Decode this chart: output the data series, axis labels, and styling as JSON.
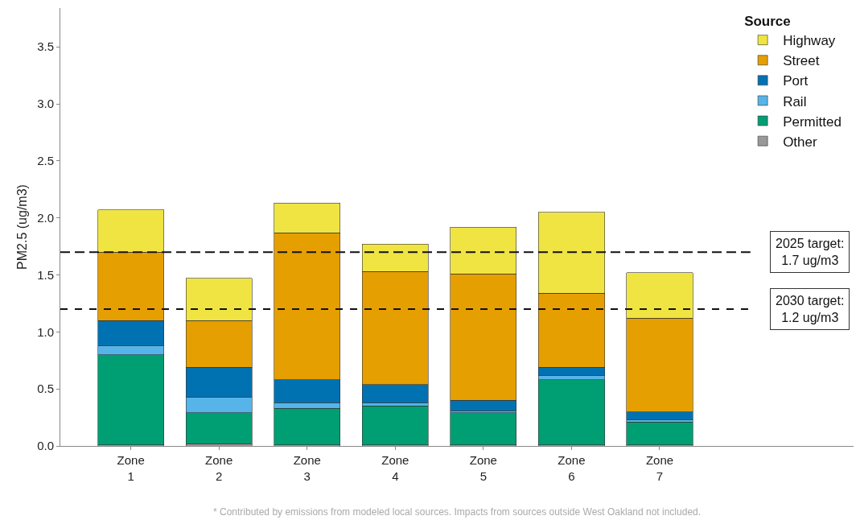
{
  "chart_data": {
    "type": "bar",
    "stacked": true,
    "ylabel": "PM2.5 (ug/m3)",
    "legend_title": "Source",
    "legend": "top right",
    "grid": false,
    "categories": [
      "Zone\n1",
      "Zone\n2",
      "Zone\n3",
      "Zone\n4",
      "Zone\n5",
      "Zone\n6",
      "Zone\n7"
    ],
    "series": [
      {
        "name": "Other",
        "color": "#999999",
        "values": [
          0.01,
          0.02,
          0.01,
          0.01,
          0.01,
          0.01,
          0.01
        ]
      },
      {
        "name": "Permitted",
        "color": "#009e73",
        "values": [
          0.79,
          0.27,
          0.32,
          0.34,
          0.28,
          0.57,
          0.2
        ]
      },
      {
        "name": "Rail",
        "color": "#56b4e9",
        "values": [
          0.08,
          0.14,
          0.05,
          0.03,
          0.02,
          0.04,
          0.02
        ]
      },
      {
        "name": "Port",
        "color": "#0072b2",
        "values": [
          0.22,
          0.26,
          0.2,
          0.16,
          0.09,
          0.07,
          0.07
        ]
      },
      {
        "name": "Street",
        "color": "#e69f00",
        "values": [
          0.6,
          0.41,
          1.29,
          0.99,
          1.11,
          0.65,
          0.82
        ]
      },
      {
        "name": "Highway",
        "color": "#f0e442",
        "values": [
          0.37,
          0.37,
          0.26,
          0.24,
          0.41,
          0.71,
          0.4
        ]
      }
    ],
    "ylim": [
      0,
      3.84
    ],
    "yticks": [
      {
        "value": 0,
        "label": "0.0"
      },
      0.5,
      {
        "value": 1,
        "label": "1.0"
      },
      1.5,
      {
        "value": 2,
        "label": "2.0"
      },
      2.5,
      {
        "value": 3,
        "label": "3.0"
      },
      3.5
    ],
    "ref_lines": [
      {
        "axis": "y",
        "value": 1.7,
        "label": "2025 target:\n1.7 ug/m3",
        "line_style": "dashed"
      },
      {
        "axis": "y",
        "value": 1.2,
        "label": "2030 target:\n1.2 ug/m3",
        "line_style": "dashed"
      }
    ],
    "annotations": [
      "* Contributed by emissions from modeled local sources. Impacts from sources outside West Oakland not included."
    ]
  }
}
